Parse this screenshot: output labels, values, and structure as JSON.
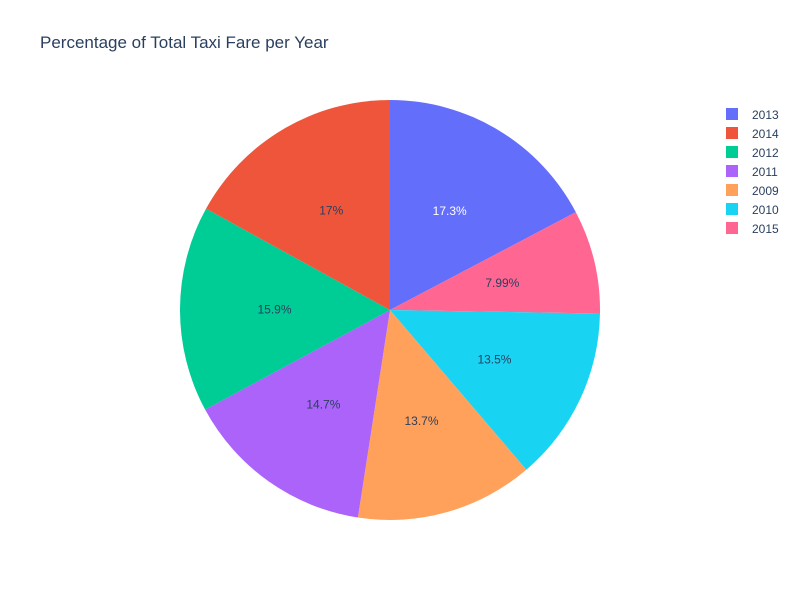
{
  "chart_data": {
    "type": "pie",
    "title": "Percentage of Total Taxi Fare per Year",
    "slices": [
      {
        "label": "2013",
        "value": 17.3,
        "text": "17.3%",
        "color": "#636efa",
        "text_color": "#ffffff"
      },
      {
        "label": "2015",
        "value": 7.99,
        "text": "7.99%",
        "color": "#ff6692",
        "text_color": "#2a3f5f"
      },
      {
        "label": "2010",
        "value": 13.5,
        "text": "13.5%",
        "color": "#19d3f3",
        "text_color": "#2a3f5f"
      },
      {
        "label": "2009",
        "value": 13.7,
        "text": "13.7%",
        "color": "#ffa15a",
        "text_color": "#2a3f5f"
      },
      {
        "label": "2011",
        "value": 14.7,
        "text": "14.7%",
        "color": "#ab63fa",
        "text_color": "#2a3f5f"
      },
      {
        "label": "2012",
        "value": 15.9,
        "text": "15.9%",
        "color": "#00cc96",
        "text_color": "#2a3f5f"
      },
      {
        "label": "2014",
        "value": 17.0,
        "text": "17%",
        "color": "#ef553b",
        "text_color": "#2a3f5f"
      }
    ],
    "legend": {
      "placement": "top-right",
      "entries": [
        "2013",
        "2014",
        "2012",
        "2011",
        "2009",
        "2010",
        "2015"
      ]
    },
    "direction": "clockwise",
    "start": "top"
  }
}
